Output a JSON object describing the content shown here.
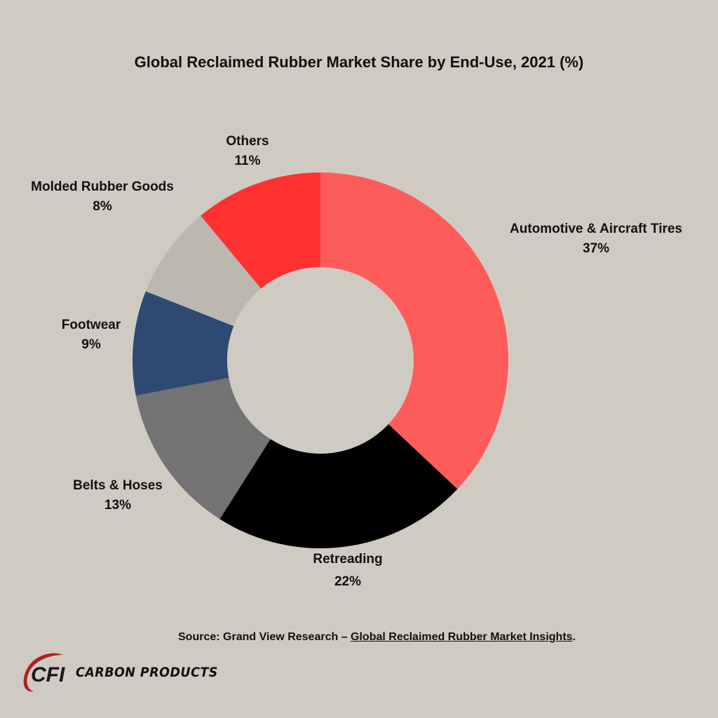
{
  "chart_data": {
    "type": "pie",
    "title": "Global Reclaimed Rubber Market Share by End-Use, 2021 (%)",
    "donut": true,
    "slices": [
      {
        "name": "Automotive & Aircraft Tires",
        "value": 37,
        "label": "37%",
        "color": "#fe5b5b"
      },
      {
        "name": "Retreading",
        "value": 22,
        "label": "22%",
        "color": "#000000"
      },
      {
        "name": "Belts & Hoses",
        "value": 13,
        "label": "13%",
        "color": "#737373"
      },
      {
        "name": "Footwear",
        "value": 9,
        "label": "9%",
        "color": "#2e4a72"
      },
      {
        "name": "Molded Rubber Goods",
        "value": 8,
        "label": "8%",
        "color": "#bdb7b1"
      },
      {
        "name": "Others",
        "value": 11,
        "label": "11%",
        "color": "#ff3131"
      }
    ]
  },
  "source": {
    "prefix": "Source:  Grand View Research – ",
    "link_text": "Global Reclaimed Rubber Market Insights",
    "suffix": "."
  },
  "logo": {
    "mark": "CFI",
    "name": "CARBON PRODUCTS",
    "colors": {
      "mark": "#1a1a1a",
      "swoosh": "#b01e23"
    }
  }
}
